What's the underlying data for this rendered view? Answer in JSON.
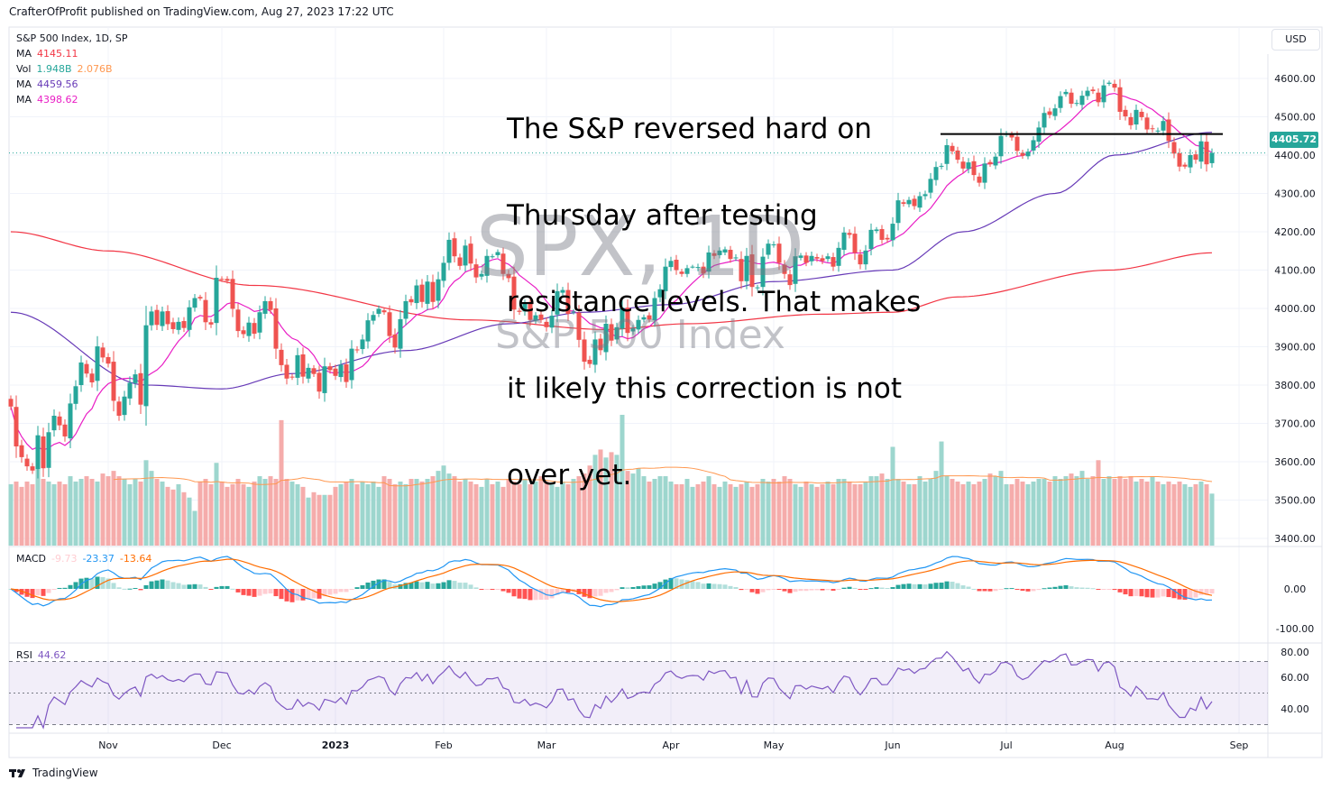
{
  "header": {
    "published": "CrafterOfProfit published on TradingView.com, Aug 27, 2023 17:22 UTC"
  },
  "legend": {
    "symbol": "S&P 500 Index, 1D, SP",
    "ma200_label": "MA",
    "ma200_value": "4145.11",
    "vol_label": "Vol",
    "vol_value": "1.948B",
    "vol_ma_value": "2.076B",
    "ma50_label": "MA",
    "ma50_value": "4459.56",
    "ma10_label": "MA",
    "ma10_value": "4398.62"
  },
  "currency": "USD",
  "last_price": "4405.72",
  "annotation": [
    "The S&P reversed hard on",
    "Thursday after testing",
    "resistance levels. That makes",
    "it likely this correction is not",
    "over yet."
  ],
  "watermark": {
    "main": "SPX, 1D",
    "sub": "S&P 500 Index"
  },
  "macd": {
    "label": "MACD",
    "hist": "-9.73",
    "macd": "-23.37",
    "signal": "-13.64",
    "ticks": [
      "0.00",
      "-100.00"
    ]
  },
  "rsi": {
    "label": "RSI",
    "value": "44.62",
    "ticks": [
      "80.00",
      "60.00",
      "40.00"
    ]
  },
  "footer": {
    "brand": "TradingView"
  },
  "colors": {
    "up": "#26a69a",
    "down": "#ef5350",
    "ma200": "#f23645",
    "ma50": "#673ab7",
    "ma10": "#e91ec5",
    "macd": "#2196f3",
    "signal": "#ff6d00",
    "rsi": "#7e57c2"
  },
  "chart_data": {
    "type": "candlestick",
    "title": "S&P 500 Index, 1D, SP",
    "ylim": [
      3380,
      4650
    ],
    "y_ticks": [
      "4600.00",
      "4500.00",
      "4400.00",
      "4300.00",
      "4200.00",
      "4100.00",
      "4000.00",
      "3900.00",
      "3800.00",
      "3700.00",
      "3600.00",
      "3500.00",
      "3400.00"
    ],
    "x_ticks": [
      {
        "label": "Nov",
        "day": 18
      },
      {
        "label": "Dec",
        "day": 39
      },
      {
        "label": "2023",
        "day": 60,
        "bold": true
      },
      {
        "label": "Feb",
        "day": 80
      },
      {
        "label": "Mar",
        "day": 99
      },
      {
        "label": "Apr",
        "day": 122
      },
      {
        "label": "May",
        "day": 141
      },
      {
        "label": "Jun",
        "day": 163
      },
      {
        "label": "Jul",
        "day": 184
      },
      {
        "label": "Aug",
        "day": 204
      },
      {
        "label": "Sep",
        "day": 227
      }
    ],
    "closes": [
      3744,
      3640,
      3612,
      3588,
      3577,
      3669,
      3583,
      3677,
      3720,
      3695,
      3666,
      3752,
      3797,
      3859,
      3830,
      3807,
      3901,
      3872,
      3856,
      3759,
      3720,
      3770,
      3806,
      3828,
      3749,
      3956,
      3992,
      3957,
      3992,
      3959,
      3946,
      3965,
      3949,
      4003,
      4027,
      4026,
      3964,
      3958,
      4080,
      4076,
      4072,
      3999,
      3941,
      3933,
      3963,
      3934,
      3990,
      4019,
      3996,
      3895,
      3852,
      3817,
      3821,
      3878,
      3822,
      3845,
      3829,
      3783,
      3849,
      3839,
      3824,
      3853,
      3808,
      3895,
      3892,
      3919,
      3969,
      3983,
      3999,
      3990,
      3928,
      3898,
      3972,
      4019,
      4016,
      4060,
      4017,
      4070,
      4017,
      4076,
      4119,
      4179,
      4136,
      4111,
      4164,
      4117,
      4081,
      4090,
      4137,
      4136,
      4147,
      4090,
      4079,
      3997,
      3991,
      4012,
      3970,
      3982,
      3970,
      3951,
      3981,
      4045,
      4048,
      3986,
      3992,
      3918,
      3861,
      3855,
      3919,
      3891,
      3960,
      3916,
      3951,
      4002,
      3936,
      3948,
      3970,
      3977,
      3971,
      4027,
      4050,
      4109,
      4124,
      4100,
      4090,
      4105,
      4109,
      4108,
      4091,
      4146,
      4137,
      4151,
      4154,
      4129,
      4133,
      4071,
      4137,
      4056,
      4055,
      4135,
      4169,
      4167,
      4119,
      4090,
      4061,
      4136,
      4138,
      4119,
      4137,
      4130,
      4124,
      4136,
      4109,
      4158,
      4198,
      4192,
      4145,
      4115,
      4151,
      4205,
      4206,
      4179,
      4180,
      4221,
      4282,
      4273,
      4283,
      4267,
      4293,
      4298,
      4338,
      4369,
      4372,
      4426,
      4410,
      4388,
      4365,
      4381,
      4348,
      4328,
      4378,
      4376,
      4396,
      4450,
      4455,
      4446,
      4411,
      4398,
      4409,
      4439,
      4472,
      4510,
      4505,
      4522,
      4554,
      4565,
      4534,
      4536,
      4555,
      4568,
      4567,
      4538,
      4582,
      4589,
      4576,
      4513,
      4501,
      4478,
      4518,
      4499,
      4467,
      4468,
      4464,
      4489,
      4437,
      4404,
      4370,
      4370,
      4400,
      4388,
      4436,
      4376,
      4405.72
    ],
    "volume_billions": [
      2.3,
      2.4,
      2.2,
      2.4,
      2.3,
      2.9,
      2.5,
      2.4,
      2.3,
      2.4,
      2.3,
      2.6,
      2.4,
      2.5,
      2.6,
      2.5,
      2.4,
      2.7,
      2.6,
      2.8,
      2.6,
      2.5,
      2.3,
      2.5,
      2.4,
      3.2,
      2.8,
      2.5,
      2.4,
      2.2,
      2.1,
      2.3,
      2.0,
      1.8,
      1.3,
      2.4,
      2.5,
      2.3,
      3.1,
      2.4,
      2.2,
      2.3,
      2.5,
      2.3,
      2.2,
      2.4,
      2.6,
      2.5,
      2.6,
      2.5,
      4.7,
      2.5,
      2.4,
      2.3,
      2.2,
      1.8,
      2.0,
      1.9,
      1.9,
      1.9,
      2.2,
      2.3,
      2.4,
      2.5,
      2.3,
      2.4,
      2.3,
      2.4,
      2.2,
      2.6,
      2.5,
      2.3,
      2.4,
      2.3,
      2.5,
      2.5,
      2.4,
      2.5,
      2.6,
      2.8,
      3.0,
      2.7,
      2.6,
      2.4,
      2.5,
      2.4,
      2.3,
      2.2,
      2.5,
      2.3,
      2.4,
      2.2,
      2.5,
      2.4,
      2.3,
      2.5,
      2.3,
      2.4,
      2.6,
      2.4,
      2.3,
      2.2,
      2.4,
      2.3,
      2.5,
      2.6,
      2.7,
      3.0,
      3.4,
      3.6,
      3.3,
      3.5,
      3.4,
      4.9,
      2.8,
      2.7,
      2.9,
      2.6,
      2.4,
      2.5,
      2.6,
      2.6,
      2.4,
      2.3,
      2.3,
      2.5,
      2.2,
      2.3,
      2.4,
      2.6,
      2.3,
      2.2,
      2.4,
      2.3,
      2.2,
      2.3,
      2.4,
      2.2,
      2.3,
      2.5,
      2.4,
      2.5,
      2.4,
      2.6,
      2.5,
      2.3,
      2.2,
      2.4,
      2.3,
      2.2,
      2.3,
      2.4,
      2.3,
      2.5,
      2.5,
      2.4,
      2.3,
      2.3,
      2.4,
      2.6,
      2.6,
      2.7,
      2.5,
      3.7,
      2.5,
      2.4,
      2.3,
      2.3,
      2.6,
      2.4,
      2.5,
      2.8,
      3.9,
      2.6,
      2.5,
      2.4,
      2.3,
      2.4,
      2.3,
      2.4,
      2.5,
      2.7,
      2.6,
      2.8,
      2.3,
      2.3,
      2.5,
      2.4,
      2.3,
      2.4,
      2.5,
      2.5,
      2.4,
      2.6,
      2.5,
      2.6,
      2.7,
      2.6,
      2.8,
      2.5,
      2.6,
      3.2,
      2.5,
      2.6,
      2.5,
      2.6,
      2.5,
      2.6,
      2.4,
      2.5,
      2.4,
      2.6,
      2.4,
      2.3,
      2.4,
      2.3,
      2.4,
      2.3,
      2.2,
      2.3,
      2.4,
      2.3,
      1.948
    ],
    "ma50_waypoints": [
      [
        0,
        3990
      ],
      [
        25,
        3800
      ],
      [
        39,
        3790
      ],
      [
        52,
        3830
      ],
      [
        73,
        3890
      ],
      [
        92,
        3960
      ],
      [
        106,
        3990
      ],
      [
        122,
        4010
      ],
      [
        141,
        4070
      ],
      [
        163,
        4100
      ],
      [
        176,
        4200
      ],
      [
        193,
        4300
      ],
      [
        204,
        4400
      ],
      [
        222,
        4459.56
      ]
    ],
    "ma200_waypoints": [
      [
        0,
        4200
      ],
      [
        18,
        4150
      ],
      [
        45,
        4060
      ],
      [
        85,
        3970
      ],
      [
        110,
        3945
      ],
      [
        125,
        3960
      ],
      [
        150,
        3985
      ],
      [
        163,
        3990
      ],
      [
        175,
        4030
      ],
      [
        203,
        4100
      ],
      [
        222,
        4145.11
      ]
    ],
    "resistance_level": 4455
  }
}
